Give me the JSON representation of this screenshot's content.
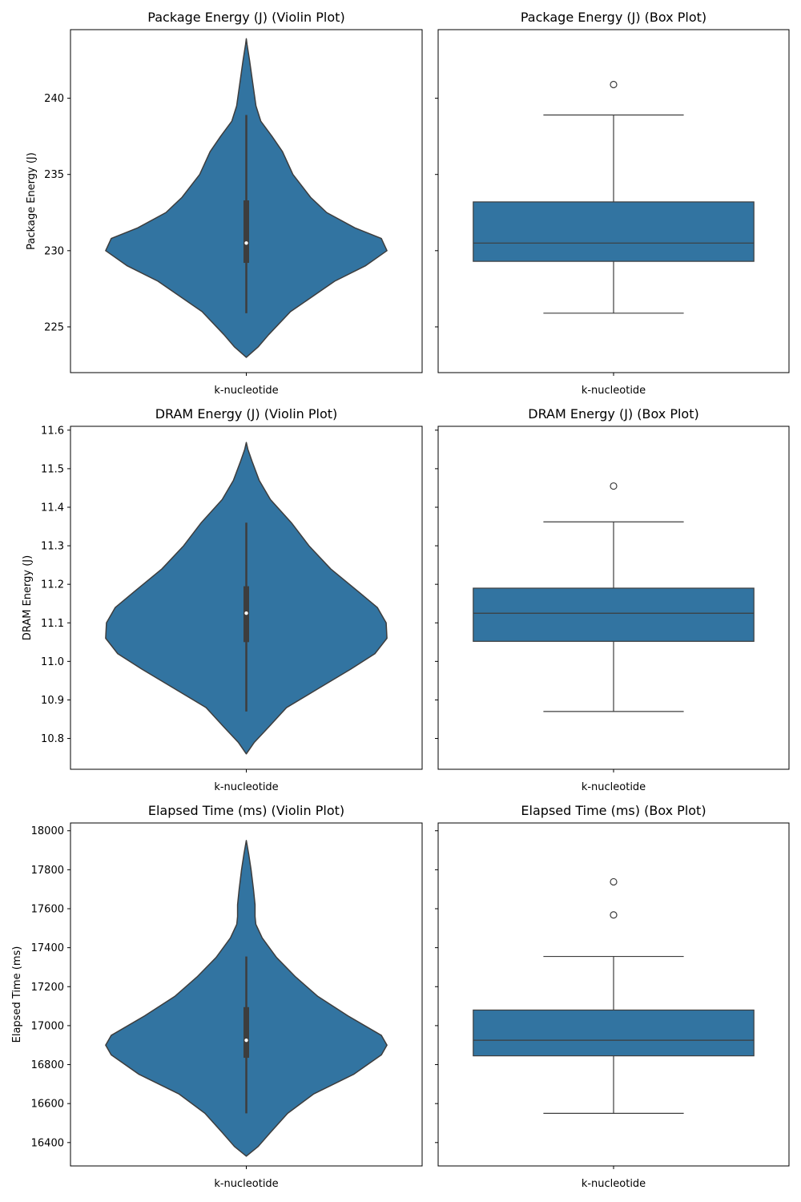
{
  "figure": {
    "category_label": "k-nucleotide",
    "fill_color": "#3274a1",
    "edge_color": "#3d3d3d"
  },
  "chart_data": [
    {
      "type": "violin",
      "title": "Package Energy (J) (Violin Plot)",
      "xlabel": "",
      "ylabel": "Package Energy (J)",
      "categories": [
        "k-nucleotide"
      ],
      "ylim": [
        222,
        244.5
      ],
      "yticks": [
        225,
        230,
        235,
        240
      ],
      "density_profile": [
        [
          223.0,
          0.0
        ],
        [
          223.7,
          15
        ],
        [
          224.5,
          28
        ],
        [
          226.0,
          55
        ],
        [
          228.0,
          110
        ],
        [
          229.0,
          148
        ],
        [
          230.0,
          175
        ],
        [
          230.8,
          168
        ],
        [
          231.5,
          135
        ],
        [
          232.5,
          100
        ],
        [
          233.5,
          80
        ],
        [
          235.0,
          58
        ],
        [
          236.5,
          45
        ],
        [
          237.5,
          32
        ],
        [
          238.5,
          18
        ],
        [
          239.5,
          12
        ],
        [
          241.0,
          8
        ],
        [
          242.5,
          4
        ],
        [
          243.5,
          1
        ],
        [
          243.9,
          0.0
        ]
      ],
      "box": {
        "whisker_low": 225.9,
        "q1": 229.2,
        "median": 230.5,
        "q3": 233.3,
        "whisker_high": 238.9
      }
    },
    {
      "type": "box",
      "title": "Package Energy (J) (Box Plot)",
      "xlabel": "",
      "ylabel": "",
      "categories": [
        "k-nucleotide"
      ],
      "ylim": [
        222,
        244.5
      ],
      "yticks": [
        225,
        230,
        235,
        240
      ],
      "box": {
        "whisker_low": 225.9,
        "q1": 229.3,
        "median": 230.5,
        "q3": 233.2,
        "whisker_high": 238.9
      },
      "outliers": [
        240.9
      ]
    },
    {
      "type": "violin",
      "title": "DRAM Energy (J) (Violin Plot)",
      "xlabel": "",
      "ylabel": "DRAM Energy (J)",
      "categories": [
        "k-nucleotide"
      ],
      "ylim": [
        10.72,
        11.61
      ],
      "yticks": [
        10.8,
        10.9,
        11.0,
        11.1,
        11.2,
        11.3,
        11.4,
        11.5,
        11.6
      ],
      "ytick_decimals": 1,
      "density_profile": [
        [
          10.76,
          0.0
        ],
        [
          10.79,
          10
        ],
        [
          10.83,
          28
        ],
        [
          10.88,
          50
        ],
        [
          10.93,
          90
        ],
        [
          10.98,
          130
        ],
        [
          11.02,
          160
        ],
        [
          11.06,
          175
        ],
        [
          11.1,
          174
        ],
        [
          11.14,
          163
        ],
        [
          11.18,
          140
        ],
        [
          11.24,
          105
        ],
        [
          11.3,
          78
        ],
        [
          11.36,
          56
        ],
        [
          11.42,
          30
        ],
        [
          11.47,
          16
        ],
        [
          11.52,
          7
        ],
        [
          11.55,
          2
        ],
        [
          11.568,
          0.0
        ]
      ],
      "box": {
        "whisker_low": 10.87,
        "q1": 11.05,
        "median": 11.125,
        "q3": 11.195,
        "whisker_high": 11.36
      }
    },
    {
      "type": "box",
      "title": "DRAM Energy (J) (Box Plot)",
      "xlabel": "",
      "ylabel": "",
      "categories": [
        "k-nucleotide"
      ],
      "ylim": [
        10.72,
        11.61
      ],
      "yticks": [
        10.8,
        10.9,
        11.0,
        11.1,
        11.2,
        11.3,
        11.4,
        11.5,
        11.6
      ],
      "box": {
        "whisker_low": 10.87,
        "q1": 11.052,
        "median": 11.125,
        "q3": 11.19,
        "whisker_high": 11.362
      },
      "outliers": [
        11.455
      ]
    },
    {
      "type": "violin",
      "title": "Elapsed Time (ms) (Violin Plot)",
      "xlabel": "",
      "ylabel": "Elapsed Time (ms)",
      "categories": [
        "k-nucleotide"
      ],
      "ylim": [
        16280,
        18040
      ],
      "yticks": [
        16400,
        16600,
        16800,
        17000,
        17200,
        17400,
        17600,
        17800,
        18000
      ],
      "density_profile": [
        [
          16330,
          0.0
        ],
        [
          16380,
          15
        ],
        [
          16450,
          30
        ],
        [
          16550,
          52
        ],
        [
          16650,
          85
        ],
        [
          16750,
          135
        ],
        [
          16850,
          170
        ],
        [
          16900,
          177
        ],
        [
          16950,
          170
        ],
        [
          17050,
          128
        ],
        [
          17150,
          90
        ],
        [
          17250,
          62
        ],
        [
          17350,
          38
        ],
        [
          17450,
          20
        ],
        [
          17520,
          12
        ],
        [
          17560,
          11
        ],
        [
          17620,
          11
        ],
        [
          17700,
          9
        ],
        [
          17800,
          6
        ],
        [
          17880,
          3
        ],
        [
          17950,
          0.0
        ]
      ],
      "box": {
        "whisker_low": 16550,
        "q1": 16835,
        "median": 16925,
        "q3": 17095,
        "whisker_high": 17355
      }
    },
    {
      "type": "box",
      "title": "Elapsed Time (ms) (Box Plot)",
      "xlabel": "",
      "ylabel": "",
      "categories": [
        "k-nucleotide"
      ],
      "ylim": [
        16280,
        18040
      ],
      "yticks": [
        16400,
        16600,
        16800,
        17000,
        17200,
        17400,
        17600,
        17800,
        18000
      ],
      "box": {
        "whisker_low": 16550,
        "q1": 16845,
        "median": 16925,
        "q3": 17080,
        "whisker_high": 17355
      },
      "outliers": [
        17568,
        17738
      ]
    }
  ]
}
